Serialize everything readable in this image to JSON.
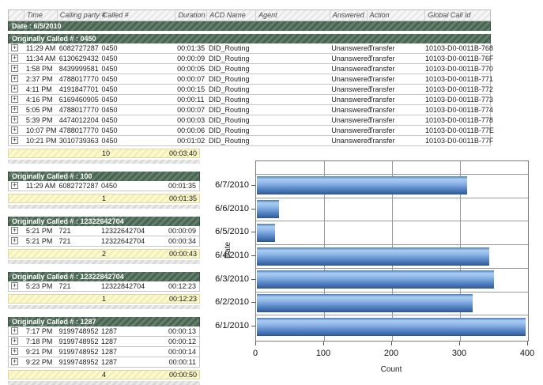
{
  "table": {
    "columns": [
      "Time",
      "Calling party #",
      "Called #",
      "Duration",
      "ACD Name",
      "Agent",
      "Answered",
      "Action",
      "Global Call Id"
    ],
    "date_header": "Date : 6/5/2010",
    "expand_glyph": "+",
    "groups": [
      {
        "header": "Originally Called # : 0450",
        "full": true,
        "rows": [
          [
            "11:29 AM",
            "6082727287",
            "0450",
            "00:01:35",
            "DID_Routing",
            "",
            "Unanswered",
            "Transfer",
            "10103-D0-0011B-768"
          ],
          [
            "11:34 AM",
            "6130629432",
            "0450",
            "00:00:09",
            "DID_Routing",
            "",
            "Unanswered",
            "Transfer",
            "10103-D0-0011B-76F"
          ],
          [
            "1:58 PM",
            "8439999581",
            "0450",
            "00:00:05",
            "DID_Routing",
            "",
            "Unanswered",
            "Transfer",
            "10103-D0-0011B-770"
          ],
          [
            "2:37 PM",
            "4788017770",
            "0450",
            "00:00:07",
            "DID_Routing",
            "",
            "Unanswered",
            "Transfer",
            "10103-D0-0011B-771"
          ],
          [
            "4:11 PM",
            "4191847701",
            "0450",
            "00:00:15",
            "DID_Routing",
            "",
            "Unanswered",
            "Transfer",
            "10103-D0-0011B-772"
          ],
          [
            "4:16 PM",
            "6169460905",
            "0450",
            "00:00:11",
            "DID_Routing",
            "",
            "Unanswered",
            "Transfer",
            "10103-D0-0011B-773"
          ],
          [
            "5:05 PM",
            "4788017770",
            "0450",
            "00:00:07",
            "DID_Routing",
            "",
            "Unanswered",
            "Transfer",
            "10103-D0-0011B-774"
          ],
          [
            "5:39 PM",
            "4474012204",
            "0450",
            "00:00:03",
            "DID_Routing",
            "",
            "Unanswered",
            "Transfer",
            "10103-D0-0011B-778"
          ],
          [
            "10:07 PM",
            "4788017770",
            "0450",
            "00:00:06",
            "DID_Routing",
            "",
            "Unanswered",
            "Transfer",
            "10103-D0-0011B-77E"
          ],
          [
            "10:21 PM",
            "3010739363",
            "0450",
            "00:01:02",
            "DID_Routing",
            "",
            "Unanswered",
            "Transfer",
            "10103-D0-0011B-77F"
          ]
        ],
        "total_count": "10",
        "total_duration": "00:03:40"
      },
      {
        "header": "Originally Called # : 100",
        "full": false,
        "rows": [
          [
            "11:29 AM",
            "6082727287",
            "0450",
            "00:01:35"
          ]
        ],
        "total_count": "1",
        "total_duration": "00:01:35"
      },
      {
        "header": "Originally Called # : 12322642704",
        "full": false,
        "rows": [
          [
            "5:21 PM",
            "721",
            "12322642704",
            "00:00:09"
          ],
          [
            "5:21 PM",
            "721",
            "12322642704",
            "00:00:34"
          ]
        ],
        "total_count": "2",
        "total_duration": "00:00:43"
      },
      {
        "header": "Originally Called # : 12322842704",
        "full": false,
        "rows": [
          [
            "5:23 PM",
            "721",
            "12322842704",
            "00:12:23"
          ]
        ],
        "total_count": "1",
        "total_duration": "00:12:23"
      },
      {
        "header": "Originally Called # : 1287",
        "full": false,
        "rows": [
          [
            "7:17 PM",
            "9199748952",
            "1287",
            "00:00:13"
          ],
          [
            "7:18 PM",
            "9199748952",
            "1287",
            "00:00:12"
          ],
          [
            "9:21 PM",
            "9199748952",
            "1287",
            "00:00:14"
          ],
          [
            "9:22 PM",
            "9199748952",
            "1287",
            "00:00:11"
          ]
        ],
        "total_count": "4",
        "total_duration": "00:00:50"
      }
    ]
  },
  "chart_data": {
    "type": "bar",
    "orientation": "horizontal",
    "title": "",
    "categories": [
      "6/7/2010",
      "6/6/2010",
      "6/5/2010",
      "6/4/2010",
      "6/3/2010",
      "6/2/2010",
      "6/1/2010"
    ],
    "values": [
      309,
      33,
      27,
      342,
      349,
      318,
      395
    ],
    "xlabel": "Count",
    "ylabel": "Date",
    "xlim": [
      0,
      400
    ],
    "xticks": [
      0,
      100,
      200,
      300,
      400
    ],
    "grid": true,
    "legend": false,
    "bar_color": "#5988c8"
  },
  "colors": {
    "group_header_green": "#4a6350",
    "summary_yellow": "#f8f5c4",
    "header_gray": "#ededed",
    "bar_blue": "#5988c8"
  }
}
